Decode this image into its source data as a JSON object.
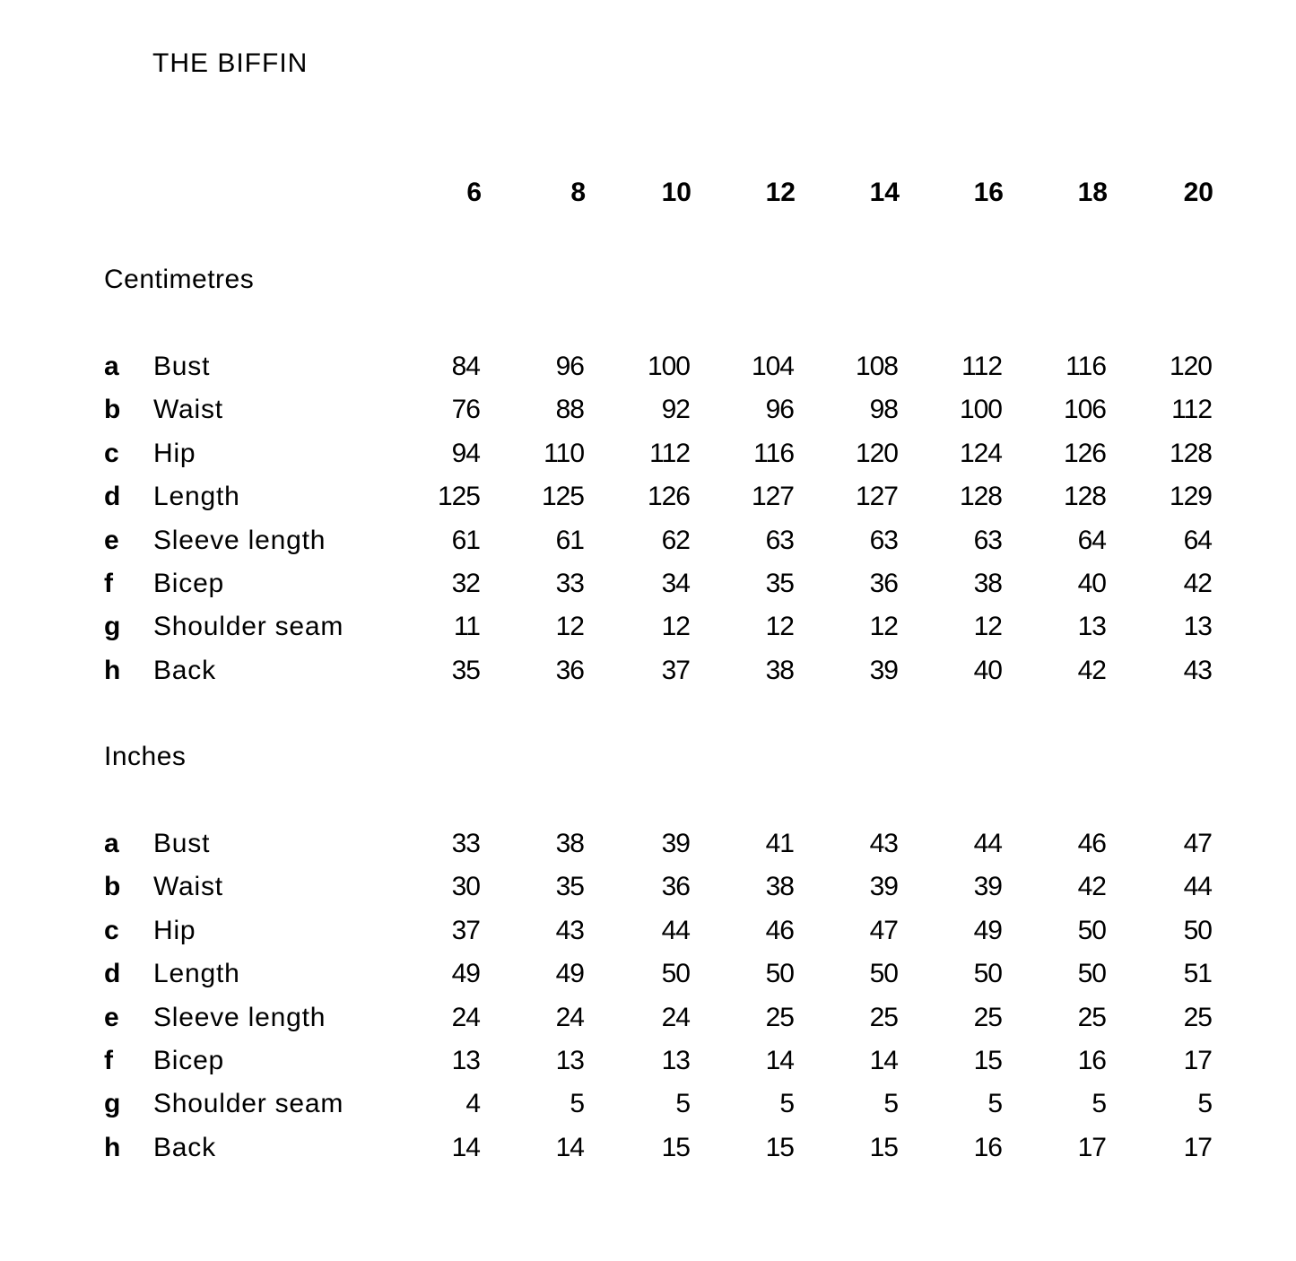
{
  "title": "THE BIFFIN",
  "sizes": [
    "6",
    "8",
    "10",
    "12",
    "14",
    "16",
    "18",
    "20"
  ],
  "sections": [
    {
      "label": "Centimetres",
      "rows": [
        {
          "letter": "a",
          "label": "Bust",
          "values": [
            "84",
            "96",
            "100",
            "104",
            "108",
            "112",
            "116",
            "120"
          ]
        },
        {
          "letter": "b",
          "label": "Waist",
          "values": [
            "76",
            "88",
            "92",
            "96",
            "98",
            "100",
            "106",
            "112"
          ]
        },
        {
          "letter": "c",
          "label": "Hip",
          "values": [
            "94",
            "110",
            "112",
            "116",
            "120",
            "124",
            "126",
            "128"
          ]
        },
        {
          "letter": "d",
          "label": "Length",
          "values": [
            "125",
            "125",
            "126",
            "127",
            "127",
            "128",
            "128",
            "129"
          ]
        },
        {
          "letter": "e",
          "label": "Sleeve length",
          "values": [
            "61",
            "61",
            "62",
            "63",
            "63",
            "63",
            "64",
            "64"
          ]
        },
        {
          "letter": "f",
          "label": "Bicep",
          "values": [
            "32",
            "33",
            "34",
            "35",
            "36",
            "38",
            "40",
            "42"
          ]
        },
        {
          "letter": "g",
          "label": "Shoulder seam",
          "values": [
            "11",
            "12",
            "12",
            "12",
            "12",
            "12",
            "13",
            "13"
          ]
        },
        {
          "letter": "h",
          "label": "Back",
          "values": [
            "35",
            "36",
            "37",
            "38",
            "39",
            "40",
            "42",
            "43"
          ]
        }
      ]
    },
    {
      "label": "Inches",
      "rows": [
        {
          "letter": "a",
          "label": "Bust",
          "values": [
            "33",
            "38",
            "39",
            "41",
            "43",
            "44",
            "46",
            "47"
          ]
        },
        {
          "letter": "b",
          "label": "Waist",
          "values": [
            "30",
            "35",
            "36",
            "38",
            "39",
            "39",
            "42",
            "44"
          ]
        },
        {
          "letter": "c",
          "label": "Hip",
          "values": [
            "37",
            "43",
            "44",
            "46",
            "47",
            "49",
            "50",
            "50"
          ]
        },
        {
          "letter": "d",
          "label": "Length",
          "values": [
            "49",
            "49",
            "50",
            "50",
            "50",
            "50",
            "50",
            "51"
          ]
        },
        {
          "letter": "e",
          "label": "Sleeve length",
          "values": [
            "24",
            "24",
            "24",
            "25",
            "25",
            "25",
            "25",
            "25"
          ]
        },
        {
          "letter": "f",
          "label": "Bicep",
          "values": [
            "13",
            "13",
            "13",
            "14",
            "14",
            "15",
            "16",
            "17"
          ]
        },
        {
          "letter": "g",
          "label": "Shoulder seam",
          "values": [
            "4",
            "5",
            "5",
            "5",
            "5",
            "5",
            "5",
            "5"
          ]
        },
        {
          "letter": "h",
          "label": "Back",
          "values": [
            "14",
            "14",
            "15",
            "15",
            "15",
            "16",
            "17",
            "17"
          ]
        }
      ]
    }
  ]
}
